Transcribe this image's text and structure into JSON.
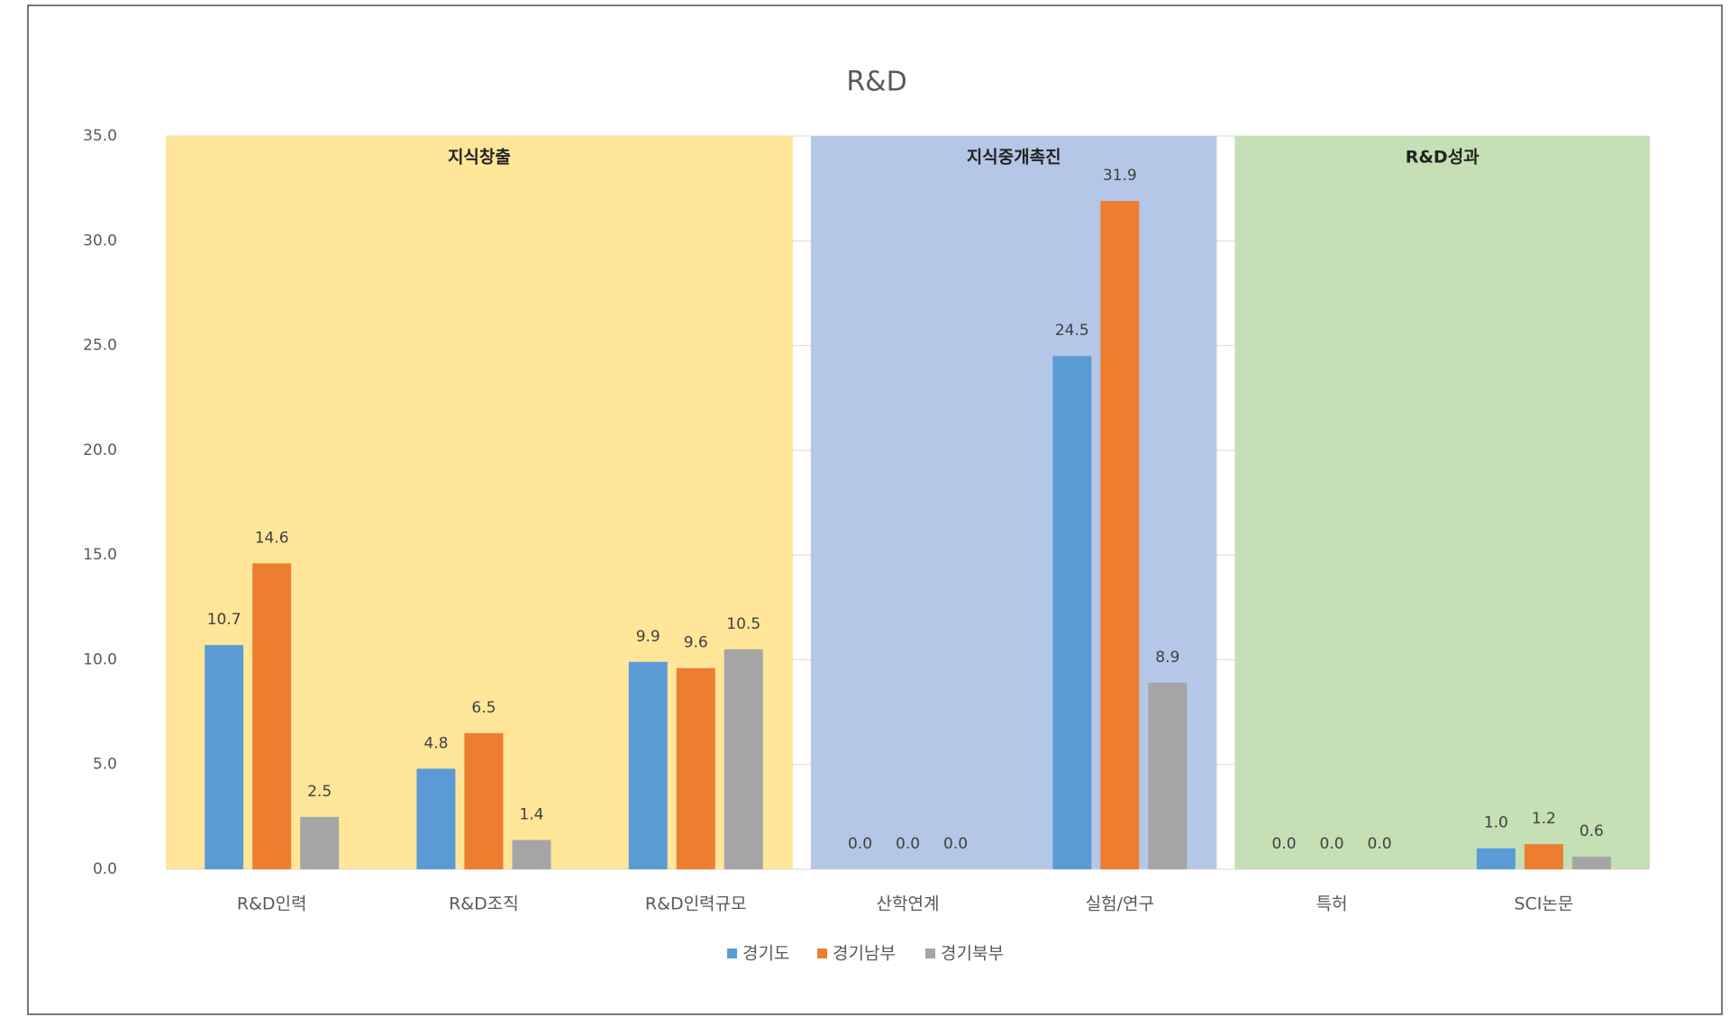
{
  "chart_data": {
    "type": "bar",
    "title": "R&D",
    "categories": [
      "R&D인력",
      "R&D조직",
      "R&D인력규모",
      "산학연계",
      "실험/연구",
      "특허",
      "SCI논문"
    ],
    "groups": [
      {
        "name": "지식창출",
        "color": "#ffe699",
        "categories": [
          "R&D인력",
          "R&D조직",
          "R&D인력규모"
        ]
      },
      {
        "name": "지식중개촉진",
        "color": "#b4c7e7",
        "categories": [
          "산학연계",
          "실험/연구"
        ]
      },
      {
        "name": "R&D성과",
        "color": "#c5e0b4",
        "categories": [
          "특허",
          "SCI논문"
        ]
      }
    ],
    "series": [
      {
        "name": "경기도",
        "color": "#5b9bd5",
        "values": [
          10.7,
          4.8,
          9.9,
          0,
          24.5,
          0,
          1.0
        ],
        "value_labels": [
          "10.7",
          "4.8",
          "9.9",
          "0.0",
          "24.5",
          "0.0",
          "1.0"
        ]
      },
      {
        "name": "경기남부",
        "color": "#ed7d31",
        "values": [
          14.6,
          6.5,
          9.6,
          0,
          31.9,
          0,
          1.2
        ],
        "value_labels": [
          "14.6",
          "6.5",
          "9.6",
          "0.0",
          "31.9",
          "0.0",
          "1.2"
        ]
      },
      {
        "name": "경기북부",
        "color": "#a5a5a5",
        "values": [
          2.5,
          1.4,
          10.5,
          0,
          8.9,
          0,
          0.6
        ],
        "value_labels": [
          "2.5",
          "1.4",
          "10.5",
          "0.0",
          "8.9",
          "0.0",
          "0.6"
        ]
      }
    ],
    "ylim": [
      0,
      35
    ],
    "yticks": [
      {
        "value": 0,
        "label": "0.0"
      },
      {
        "value": 5,
        "label": "5.0"
      },
      {
        "value": 10,
        "label": "10.0"
      },
      {
        "value": 15,
        "label": "15.0"
      },
      {
        "value": 20,
        "label": "20.0"
      },
      {
        "value": 25,
        "label": "25.0"
      },
      {
        "value": 30,
        "label": "30.0"
      },
      {
        "value": 35,
        "label": "35.0"
      }
    ],
    "grid": true,
    "legend": "bottom"
  }
}
